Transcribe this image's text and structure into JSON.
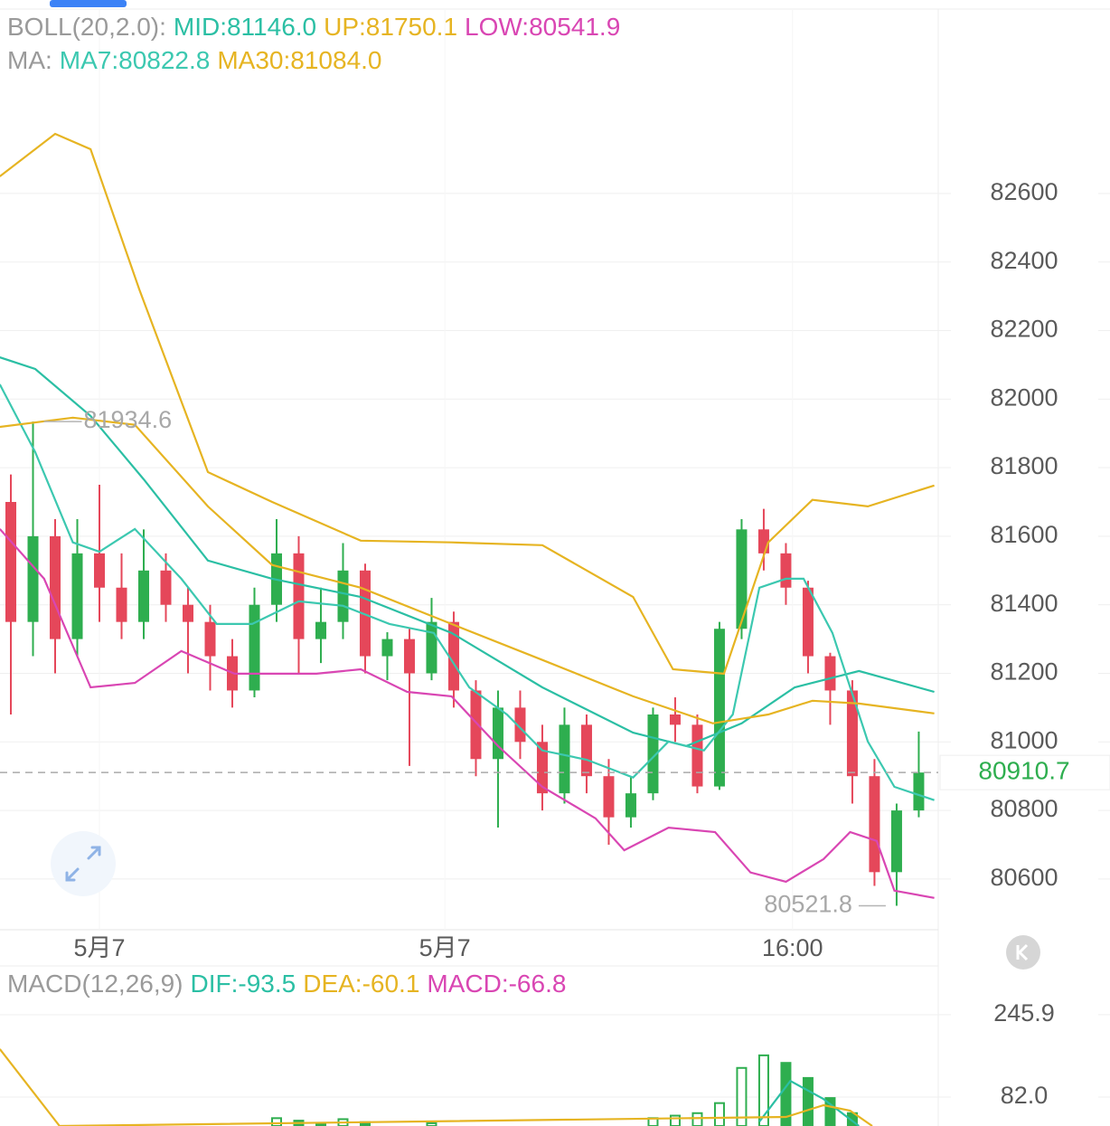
{
  "chart_data": [
    {
      "type": "candlestick",
      "up_color": "#2eae4f",
      "down_color": "#e5475a",
      "open": [
        81700,
        81350,
        81600,
        81300,
        81550,
        81450,
        81350,
        81500,
        81400,
        81350,
        81250,
        81150,
        81400,
        81550,
        81300,
        81350,
        81500,
        81250,
        81300,
        81200,
        81350,
        81150,
        80950,
        81100,
        81000,
        80850,
        81050,
        80900,
        80780,
        80850,
        81080,
        81050,
        80870,
        81330,
        81620,
        81550,
        81450,
        81250,
        81150,
        80900,
        80620,
        80800
      ],
      "high": [
        81780,
        81934.6,
        81650,
        81650,
        81750,
        81550,
        81620,
        81550,
        81450,
        81400,
        81300,
        81450,
        81650,
        81600,
        81450,
        81580,
        81520,
        81320,
        81330,
        81420,
        81380,
        81180,
        81150,
        81150,
        81050,
        81100,
        81080,
        80950,
        80900,
        81100,
        81130,
        81080,
        81350,
        81650,
        81680,
        81580,
        81470,
        81260,
        81180,
        80950,
        80820,
        81030
      ],
      "low": [
        81080,
        81250,
        81200,
        81250,
        81350,
        81300,
        81300,
        81350,
        81200,
        81150,
        81100,
        81130,
        81350,
        81200,
        81230,
        81300,
        81200,
        81180,
        80930,
        81180,
        81100,
        80900,
        80750,
        80950,
        80800,
        80820,
        80850,
        80700,
        80750,
        80830,
        81000,
        80850,
        80860,
        81300,
        81500,
        81400,
        81200,
        81050,
        80820,
        80580,
        80521.8,
        80780
      ],
      "close": [
        81350,
        81600,
        81300,
        81550,
        81450,
        81350,
        81500,
        81400,
        81350,
        81250,
        81150,
        81400,
        81550,
        81300,
        81350,
        81500,
        81250,
        81300,
        81200,
        81350,
        81150,
        80950,
        81100,
        81000,
        80850,
        81050,
        80900,
        80780,
        80850,
        81080,
        81050,
        80870,
        81330,
        81620,
        81550,
        81450,
        81250,
        81150,
        80900,
        80620,
        80800,
        80910.7
      ],
      "indicators": [
        {
          "label": "BOLL(20,2.0):",
          "series": [
            {
              "legend": "MID:81146.0",
              "color": "#2bbfa4",
              "x": [
                -0.5,
                1.1,
                3.6,
                6.0,
                8.9,
                11.8,
                15.8,
                19.9,
                24.0,
                28.1,
                30.5,
                33.0,
                35.4,
                38.3,
                41.7
              ],
              "values": [
                82122,
                82088,
                81951,
                81766,
                81529,
                81476,
                81423,
                81318,
                81159,
                81027,
                80988,
                81054,
                81159,
                81207,
                81146
              ]
            },
            {
              "legend": "UP:81750.1",
              "color": "#e6b422",
              "x": [
                -0.5,
                2.0,
                3.6,
                5.8,
                8.9,
                11.8,
                15.8,
                19.9,
                24.0,
                28.1,
                29.9,
                32.2,
                34.2,
                36.2,
                38.7,
                41.7
              ],
              "values": [
                82650,
                82774,
                82729,
                82320,
                81787,
                81700,
                81587,
                81582,
                81574,
                81423,
                81212,
                81199,
                81582,
                81706,
                81687,
                81748
              ]
            },
            {
              "legend": "LOW:80541.9",
              "color": "#d946b3",
              "x": [
                -0.5,
                1.5,
                3.6,
                5.6,
                7.7,
                10.1,
                13.8,
                15.8,
                17.9,
                19.9,
                22.0,
                24.0,
                26.4,
                27.7,
                29.7,
                31.8,
                33.4,
                35.0,
                36.7,
                37.9,
                39.1,
                39.9,
                41.7
              ],
              "values": [
                81621,
                81476,
                81159,
                81172,
                81265,
                81199,
                81199,
                81212,
                81146,
                81133,
                80988,
                80869,
                80777,
                80684,
                80750,
                80737,
                80619,
                80592,
                80658,
                80737,
                80711,
                80566,
                80545
              ]
            }
          ]
        },
        {
          "label": "MA:",
          "series": [
            {
              "legend": "MA7:80822.8",
              "color": "#3cc8b0",
              "x": [
                -0.5,
                1.1,
                2.8,
                4.0,
                5.6,
                7.7,
                9.3,
                10.9,
                13.0,
                15.0,
                17.1,
                19.1,
                20.7,
                22.4,
                24.0,
                26.0,
                28.1,
                29.7,
                31.3,
                32.6,
                33.8,
                35.0,
                35.8,
                37.1,
                38.7,
                39.9,
                41.7
              ],
              "values": [
                82043,
                81845,
                81582,
                81555,
                81621,
                81476,
                81344,
                81344,
                81410,
                81397,
                81344,
                81318,
                81159,
                81080,
                80975,
                80948,
                80896,
                81001,
                80975,
                81080,
                81450,
                81476,
                81476,
                81318,
                81001,
                80869,
                80830
              ]
            },
            {
              "legend": "MA30:81084.0",
              "color": "#e6b422",
              "x": [
                -0.5,
                2.8,
                5.6,
                8.9,
                11.8,
                15.8,
                19.9,
                24.0,
                28.1,
                31.7,
                34.2,
                36.2,
                38.3,
                41.7
              ],
              "values": [
                81919,
                81946,
                81925,
                81687,
                81516,
                81450,
                81344,
                81239,
                81133,
                81054,
                81080,
                81120,
                81112,
                81083
              ]
            }
          ]
        }
      ],
      "annotations": [
        81934.6,
        80521.8
      ],
      "price": 80910.7,
      "price_label": "80910.7",
      "price_color": "#2eae4f",
      "xlim": [
        -0.49,
        41.88
      ],
      "xticks": [
        {
          "value": 4,
          "label": "5月7"
        },
        {
          "value": 19.6,
          "label": "5月7"
        },
        {
          "value": 35.3,
          "label": "16:00"
        }
      ],
      "ylim": [
        80452,
        83138
      ],
      "yticks": [
        80600,
        80800,
        81000,
        81200,
        81400,
        81600,
        81800,
        82000,
        82200,
        82400,
        82600
      ],
      "grid": true
    },
    {
      "type": "macd",
      "title": "MACD(12,26,9)",
      "series": [
        {
          "legend": "DIF:-93.5",
          "color": "#2bbfa4",
          "x": [
            33.8,
            35.2,
            36.7,
            38.3
          ],
          "values": [
            33,
            114,
            78,
            24.4
          ]
        },
        {
          "legend": "DEA:-60.1",
          "color": "#e6b422",
          "x": [
            -0.5,
            2.2,
            35.0,
            36.7,
            37.9,
            38.9
          ],
          "values": [
            177.5,
            24.4,
            42.4,
            65.8,
            55,
            24.4
          ]
        }
      ],
      "histogram": {
        "legend": "MACD:-66.8",
        "color": "#d946b3",
        "bar_color": "#2eae4f",
        "x": [
          12,
          13,
          14,
          15,
          16,
          19,
          29,
          30,
          31,
          32,
          33,
          34,
          35,
          36,
          37,
          38
        ],
        "values": [
          40,
          35,
          30,
          38,
          32,
          30,
          40,
          45,
          50,
          70,
          140,
          165,
          150,
          120,
          80,
          50
        ]
      },
      "xlim": [
        -0.49,
        41.88
      ],
      "ylim": [
        24.4,
        343
      ],
      "yticks": [
        {
          "value": 82,
          "label": "82.0"
        },
        245.9
      ],
      "grid": true
    }
  ]
}
